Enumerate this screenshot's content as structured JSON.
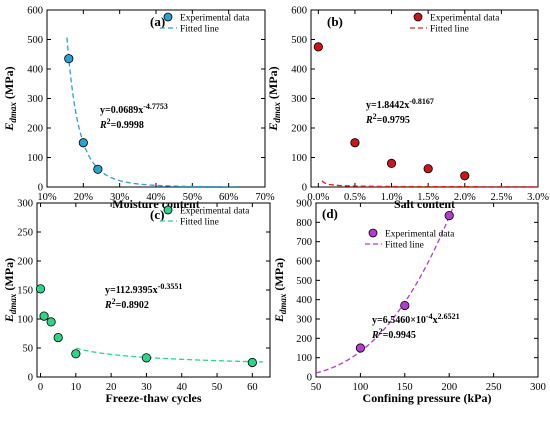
{
  "chart_data": [
    {
      "type": "scatter",
      "panel_label": "(a)",
      "xlabel": "Moisture content",
      "ylabel_main": "E",
      "ylabel_sub": "dmax",
      "ylabel_unit": " (MPa)",
      "xlim": [
        0.1,
        0.7
      ],
      "ylim": [
        0,
        600
      ],
      "xticks": [
        0.1,
        0.2,
        0.3,
        0.4,
        0.5,
        0.6,
        0.7
      ],
      "xtick_labels": [
        "10%",
        "20%",
        "30%",
        "40%",
        "50%",
        "60%",
        "70%"
      ],
      "yticks": [
        0,
        100,
        200,
        300,
        400,
        500,
        600
      ],
      "ytick_labels": [
        "0",
        "100",
        "200",
        "300",
        "400",
        "500",
        "600"
      ],
      "series": [
        {
          "name": "Experimental data",
          "x": [
            0.16,
            0.2,
            0.24
          ],
          "y": [
            435,
            150,
            60
          ]
        },
        {
          "name": "Fitted line"
        }
      ],
      "fit": {
        "a": 0.0689,
        "b": -4.7753,
        "x_range": [
          0.155,
          0.62
        ]
      },
      "equation": {
        "base": "y=0.0689x",
        "exp": "-4.7753"
      },
      "r2": {
        "label": "R",
        "sup": "2",
        "value": "=0.9998"
      },
      "marker_color": "#2aa1d2",
      "line_color": "#2aa1d2",
      "legend_position": "top-right",
      "grid": false
    },
    {
      "type": "scatter",
      "panel_label": "(b)",
      "xlabel": "Salt content",
      "ylabel_main": "E",
      "ylabel_sub": "dmax",
      "ylabel_unit": " (MPa)",
      "xlim": [
        -0.001,
        0.03
      ],
      "ylim": [
        0,
        600
      ],
      "xticks": [
        0.0,
        0.005,
        0.01,
        0.015,
        0.02,
        0.025,
        0.03
      ],
      "xtick_labels": [
        "0.0%",
        "0.5%",
        "1.0%",
        "1.5%",
        "2.0%",
        "2.5%",
        "3.0%"
      ],
      "yticks": [
        0,
        100,
        200,
        300,
        400,
        500,
        600
      ],
      "ytick_labels": [
        "0",
        "100",
        "200",
        "300",
        "400",
        "500",
        "600"
      ],
      "series": [
        {
          "name": "Experimental data",
          "x": [
            0.0,
            0.005,
            0.01,
            0.015,
            0.02
          ],
          "y": [
            475,
            150,
            80,
            62,
            38
          ]
        },
        {
          "name": "Fitted line"
        }
      ],
      "fit": {
        "a": 1.8442,
        "b": -0.8167,
        "x_scale": 100,
        "x_range": [
          0.0005,
          0.03
        ]
      },
      "equation": {
        "base": "y=1.8442x",
        "exp": "-0.8167"
      },
      "r2": {
        "label": "R",
        "sup": "2",
        "value": "=0.9795"
      },
      "marker_color": "#c8161d",
      "line_color": "#e0201a",
      "legend_position": "top-right",
      "grid": false
    },
    {
      "type": "scatter",
      "panel_label": "(c)",
      "xlabel": "Freeze-thaw cycles",
      "ylabel_main": "E",
      "ylabel_sub": "dmax",
      "ylabel_unit": " (MPa)",
      "xlim": [
        -1,
        65
      ],
      "ylim": [
        0,
        300
      ],
      "xticks": [
        0,
        10,
        20,
        30,
        40,
        50,
        60
      ],
      "xtick_labels": [
        "0",
        "10",
        "20",
        "30",
        "40",
        "50",
        "60"
      ],
      "yticks": [
        0,
        50,
        100,
        150,
        200,
        250,
        300
      ],
      "ytick_labels": [
        "0",
        "50",
        "100",
        "150",
        "200",
        "250",
        "300"
      ],
      "series": [
        {
          "name": "Experimental data",
          "x": [
            0,
            1,
            3,
            5,
            10,
            30,
            60
          ],
          "y": [
            152,
            105,
            95,
            68,
            40,
            33,
            25
          ]
        },
        {
          "name": "Fitted line"
        }
      ],
      "fit": {
        "a": 112.9395,
        "b": -0.3551,
        "x_range": [
          10,
          63
        ]
      },
      "equation": {
        "base": "y=112.9395x",
        "exp": "-0.3551"
      },
      "r2": {
        "label": "R",
        "sup": "2",
        "value": "=0.8902"
      },
      "marker_color": "#2ed48a",
      "line_color": "#2ed48a",
      "legend_position": "top-right",
      "grid": false
    },
    {
      "type": "scatter",
      "panel_label": "(d)",
      "xlabel": "Confining pressure (kPa)",
      "ylabel_main": "E",
      "ylabel_sub": "dmax",
      "ylabel_unit": " (MPa)",
      "xlim": [
        50,
        300
      ],
      "ylim": [
        0,
        900
      ],
      "xticks": [
        50,
        100,
        150,
        200,
        250,
        300
      ],
      "xtick_labels": [
        "50",
        "100",
        "150",
        "200",
        "250",
        "300"
      ],
      "yticks": [
        0,
        100,
        200,
        300,
        400,
        500,
        600,
        700,
        800,
        900
      ],
      "ytick_labels": [
        "0",
        "100",
        "200",
        "300",
        "400",
        "500",
        "600",
        "700",
        "800",
        "900"
      ],
      "series": [
        {
          "name": "Experimental data",
          "x": [
            100,
            150,
            200
          ],
          "y": [
            150,
            370,
            835
          ]
        },
        {
          "name": "Fitted line"
        }
      ],
      "fit": {
        "a": 0.0006546,
        "b": 2.6521,
        "x_range": [
          50,
          205
        ]
      },
      "equation": {
        "base": "y=6.5460×10",
        "exp1": "-4",
        "mid": "x",
        "exp2": "2.6521"
      },
      "r2": {
        "label": "R",
        "sup": "2",
        "value": "=0.9945"
      },
      "marker_color": "#b33ccf",
      "line_color": "#b33ccf",
      "legend_position": "top-left",
      "grid": false
    }
  ]
}
